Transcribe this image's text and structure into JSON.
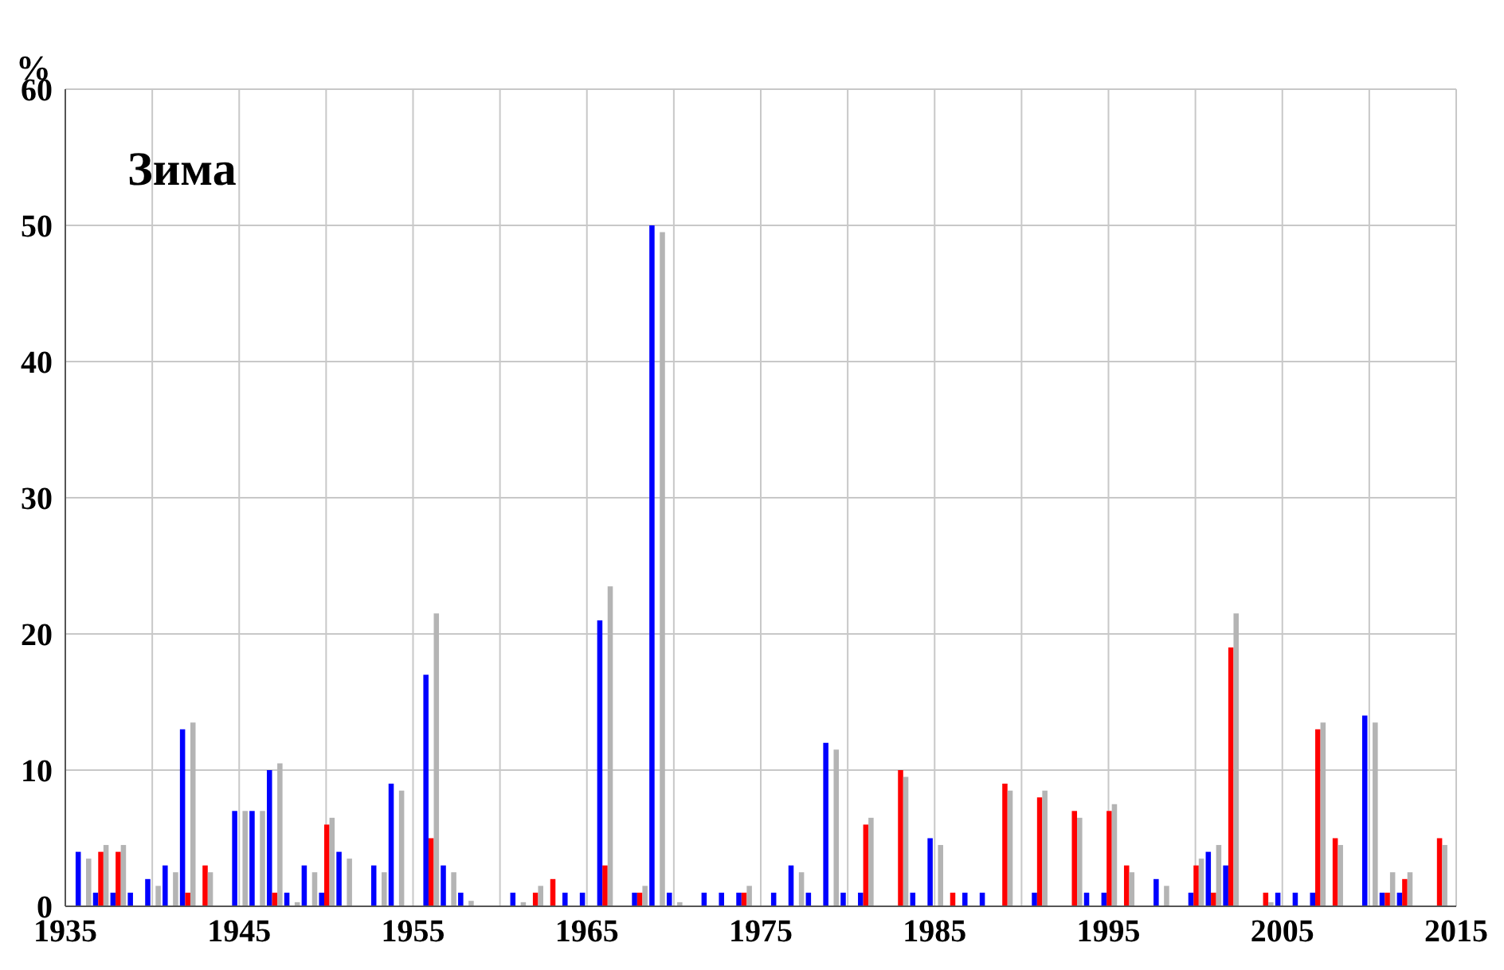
{
  "chart_data": {
    "type": "bar",
    "title": "Зима",
    "ylabel": "%",
    "x": [
      1936,
      1937,
      1938,
      1939,
      1940,
      1941,
      1942,
      1943,
      1944,
      1945,
      1946,
      1947,
      1948,
      1949,
      1950,
      1951,
      1952,
      1953,
      1954,
      1955,
      1956,
      1957,
      1958,
      1959,
      1960,
      1961,
      1962,
      1963,
      1964,
      1965,
      1966,
      1967,
      1968,
      1969,
      1970,
      1971,
      1972,
      1973,
      1974,
      1975,
      1976,
      1977,
      1978,
      1979,
      1980,
      1981,
      1982,
      1983,
      1984,
      1985,
      1986,
      1987,
      1988,
      1989,
      1990,
      1991,
      1992,
      1993,
      1994,
      1995,
      1996,
      1997,
      1998,
      1999,
      2000,
      2001,
      2002,
      2003,
      2004,
      2005,
      2006,
      2007,
      2008,
      2009,
      2010,
      2011,
      2012,
      2013,
      2014
    ],
    "series": [
      {
        "color": "#0000ff",
        "values": [
          4,
          1,
          1,
          1,
          2,
          3,
          13,
          null,
          null,
          7,
          7,
          10,
          1,
          3,
          1,
          4,
          null,
          3,
          9,
          null,
          17,
          3,
          1,
          null,
          null,
          1,
          null,
          null,
          1,
          1,
          21,
          null,
          1,
          50,
          1,
          null,
          1,
          1,
          1,
          null,
          1,
          3,
          1,
          12,
          1,
          1,
          null,
          null,
          1,
          5,
          null,
          1,
          1,
          null,
          null,
          1,
          null,
          null,
          1,
          1,
          null,
          null,
          2,
          null,
          1,
          4,
          3,
          null,
          null,
          1,
          1,
          1,
          null,
          null,
          14,
          1,
          1,
          null,
          null
        ]
      },
      {
        "color": "#ff0000",
        "values": [
          null,
          4,
          4,
          null,
          null,
          null,
          1,
          3,
          null,
          null,
          null,
          1,
          null,
          null,
          6,
          null,
          null,
          null,
          null,
          null,
          5,
          null,
          null,
          null,
          null,
          null,
          1,
          2,
          null,
          null,
          3,
          null,
          1,
          null,
          null,
          null,
          null,
          null,
          1,
          null,
          null,
          null,
          null,
          null,
          null,
          6,
          null,
          10,
          null,
          null,
          1,
          null,
          null,
          9,
          null,
          8,
          null,
          7,
          null,
          7,
          3,
          null,
          null,
          null,
          3,
          1,
          19,
          null,
          1,
          null,
          null,
          13,
          5,
          null,
          null,
          1,
          2,
          null,
          5
        ]
      },
      {
        "color": "#b4b4b4",
        "values": [
          3.5,
          4.5,
          4.5,
          null,
          1.5,
          2.5,
          13.5,
          2.5,
          null,
          7,
          7,
          10.5,
          0.3,
          2.5,
          6.5,
          3.5,
          null,
          2.5,
          8.5,
          null,
          21.5,
          2.5,
          0.4,
          null,
          null,
          0.3,
          1.5,
          null,
          null,
          null,
          23.5,
          null,
          1.5,
          49.5,
          0.3,
          null,
          null,
          null,
          1.5,
          null,
          null,
          2.5,
          null,
          11.5,
          null,
          6.5,
          null,
          9.5,
          null,
          4.5,
          null,
          null,
          null,
          8.5,
          null,
          8.5,
          null,
          6.5,
          null,
          7.5,
          2.5,
          null,
          1.5,
          null,
          3.5,
          4.5,
          21.5,
          null,
          0.3,
          null,
          null,
          13.5,
          4.5,
          null,
          13.5,
          2.5,
          2.5,
          null,
          4.5
        ]
      }
    ],
    "xlim": [
      1935,
      2015
    ],
    "xticks": [
      1935,
      {
        "value": 1940,
        "label": null
      },
      1945,
      {
        "value": 1950,
        "label": null
      },
      1955,
      {
        "value": 1960,
        "label": null
      },
      1965,
      {
        "value": 1970,
        "label": null
      },
      1975,
      {
        "value": 1980,
        "label": null
      },
      1985,
      {
        "value": 1990,
        "label": null
      },
      1995,
      {
        "value": 2000,
        "label": null
      },
      2005,
      {
        "value": 2010,
        "label": null
      },
      2015
    ],
    "ylim": [
      0,
      60
    ],
    "yticks": [
      0,
      10,
      20,
      30,
      40,
      50,
      60
    ],
    "grid": true
  }
}
